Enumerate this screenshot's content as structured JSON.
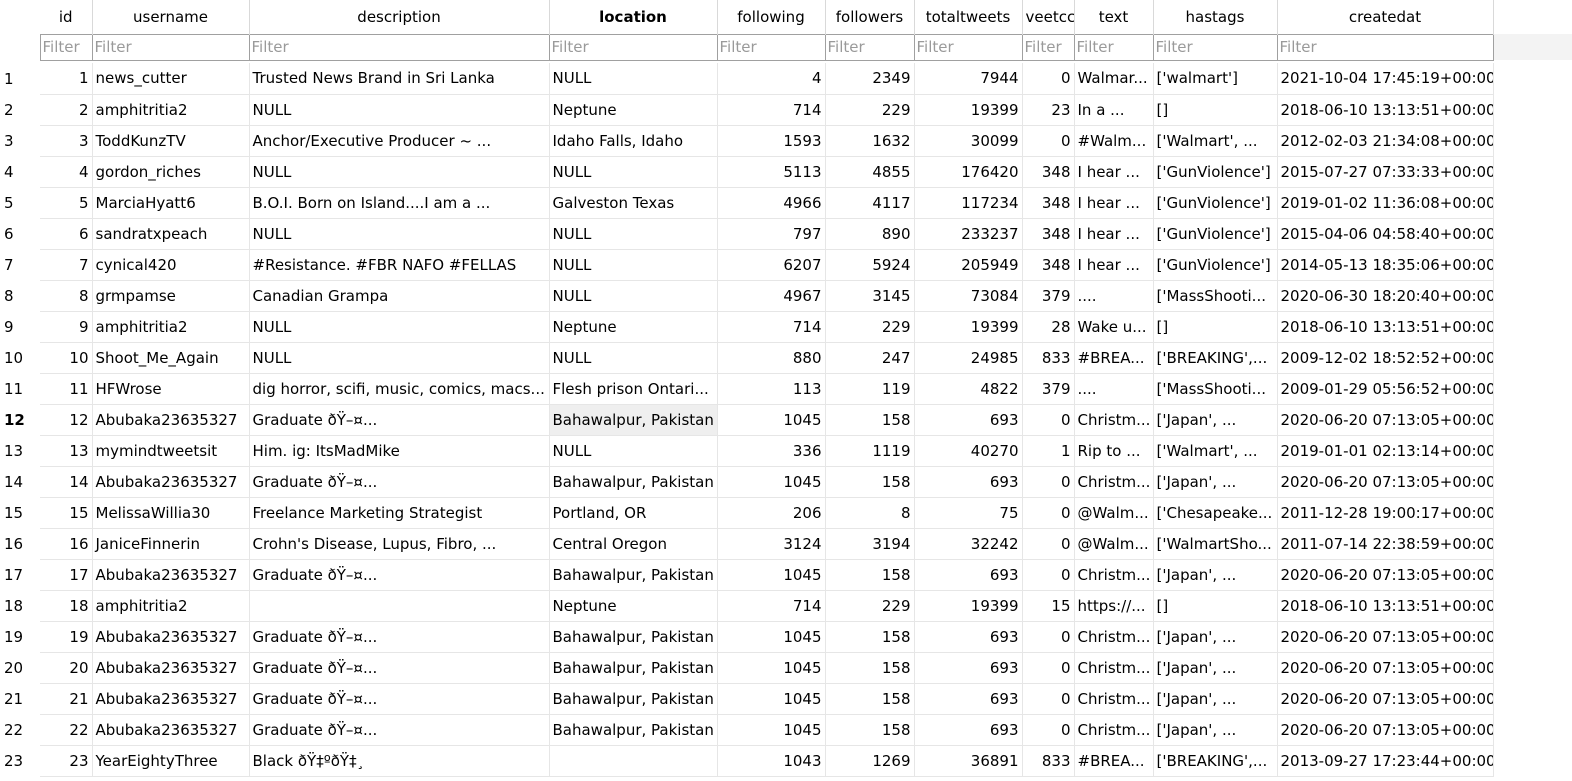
{
  "columns": [
    {
      "key": "rownum",
      "label": ""
    },
    {
      "key": "id",
      "label": "id"
    },
    {
      "key": "username",
      "label": "username"
    },
    {
      "key": "description",
      "label": "description"
    },
    {
      "key": "location",
      "label": "location"
    },
    {
      "key": "following",
      "label": "following"
    },
    {
      "key": "followers",
      "label": "followers"
    },
    {
      "key": "totaltweets",
      "label": "totaltweets"
    },
    {
      "key": "retweetcount",
      "label": "veetcc"
    },
    {
      "key": "text",
      "label": "text"
    },
    {
      "key": "hastags",
      "label": "hastags"
    },
    {
      "key": "createdat",
      "label": "createdat"
    }
  ],
  "sorted_column": "location",
  "filter_placeholder": "Filter",
  "current_row_number": "12",
  "selected_cell": {
    "row": "12",
    "column": "location"
  },
  "rows": [
    [
      "1",
      "1",
      "news_cutter",
      "Trusted News Brand in Sri Lanka",
      "NULL",
      "4",
      "2349",
      "7944",
      "0",
      "Walmar...",
      "['walmart']",
      "2021-10-04 17:45:19+00:00"
    ],
    [
      "2",
      "2",
      "amphitritia2",
      "NULL",
      "Neptune",
      "714",
      "229",
      "19399",
      "23",
      "In a ...",
      "[]",
      "2018-06-10 13:13:51+00:00"
    ],
    [
      "3",
      "3",
      "ToddKunzTV",
      "Anchor/Executive Producer ~ ...",
      "Idaho Falls, Idaho",
      "1593",
      "1632",
      "30099",
      "0",
      "#Walm...",
      "['Walmart', ...",
      "2012-02-03 21:34:08+00:00"
    ],
    [
      "4",
      "4",
      "gordon_riches",
      "NULL",
      "NULL",
      "5113",
      "4855",
      "176420",
      "348",
      "I hear ...",
      "['GunViolence']",
      "2015-07-27 07:33:33+00:00"
    ],
    [
      "5",
      "5",
      "MarciaHyatt6",
      "B.O.I. Born on Island....I am a ...",
      "Galveston Texas",
      "4966",
      "4117",
      "117234",
      "348",
      "I hear ...",
      "['GunViolence']",
      "2019-01-02 11:36:08+00:00"
    ],
    [
      "6",
      "6",
      "sandratxpeach",
      "NULL",
      "NULL",
      "797",
      "890",
      "233237",
      "348",
      "I hear ...",
      "['GunViolence']",
      "2015-04-06 04:58:40+00:00"
    ],
    [
      "7",
      "7",
      "cynical420",
      "#Resistance. #FBR NAFO  #FELLAS",
      "NULL",
      "6207",
      "5924",
      "205949",
      "348",
      "I hear ...",
      "['GunViolence']",
      "2014-05-13 18:35:06+00:00"
    ],
    [
      "8",
      "8",
      "grmpamse",
      "Canadian Grampa",
      "NULL",
      "4967",
      "3145",
      "73084",
      "379",
      "....",
      "['MassShooti...",
      "2020-06-30 18:20:40+00:00"
    ],
    [
      "9",
      "9",
      "amphitritia2",
      "NULL",
      "Neptune",
      "714",
      "229",
      "19399",
      "28",
      "Wake u...",
      "[]",
      "2018-06-10 13:13:51+00:00"
    ],
    [
      "10",
      "10",
      "Shoot_Me_Again",
      "NULL",
      "NULL",
      "880",
      "247",
      "24985",
      "833",
      "#BREA...",
      "['BREAKING',...",
      "2009-12-02 18:52:52+00:00"
    ],
    [
      "11",
      "11",
      "HFWrose",
      "dig horror, scifi, music, comics, macs...",
      "Flesh prison Ontari...",
      "113",
      "119",
      "4822",
      "379",
      "....",
      "['MassShooti...",
      "2009-01-29 05:56:52+00:00"
    ],
    [
      "12",
      "12",
      "Abubaka23635327",
      "Graduate ðŸ–¤...",
      "Bahawalpur, Pakistan",
      "1045",
      "158",
      "693",
      "0",
      "Christm...",
      "['Japan', ...",
      "2020-06-20 07:13:05+00:00"
    ],
    [
      "13",
      "13",
      "mymindtweetsit",
      "Him. ig: ItsMadMike",
      "NULL",
      "336",
      "1119",
      "40270",
      "1",
      "Rip to ...",
      "['Walmart', ...",
      "2019-01-01 02:13:14+00:00"
    ],
    [
      "14",
      "14",
      "Abubaka23635327",
      "Graduate ðŸ–¤...",
      "Bahawalpur, Pakistan",
      "1045",
      "158",
      "693",
      "0",
      "Christm...",
      "['Japan', ...",
      "2020-06-20 07:13:05+00:00"
    ],
    [
      "15",
      "15",
      "MelissaWillia30",
      "Freelance Marketing Strategist",
      "Portland, OR",
      "206",
      "8",
      "75",
      "0",
      "@Walm...",
      "['Chesapeake...",
      "2011-12-28 19:00:17+00:00"
    ],
    [
      "16",
      "16",
      "JaniceFinnerin",
      "Crohn's Disease, Lupus, Fibro, ...",
      "Central Oregon",
      "3124",
      "3194",
      "32242",
      "0",
      "@Walm...",
      "['WalmartSho...",
      "2011-07-14 22:38:59+00:00"
    ],
    [
      "17",
      "17",
      "Abubaka23635327",
      "Graduate ðŸ–¤...",
      "Bahawalpur, Pakistan",
      "1045",
      "158",
      "693",
      "0",
      "Christm...",
      "['Japan', ...",
      "2020-06-20 07:13:05+00:00"
    ],
    [
      "18",
      "18",
      "amphitritia2",
      "",
      "Neptune",
      "714",
      "229",
      "19399",
      "15",
      "https://...",
      "[]",
      "2018-06-10 13:13:51+00:00"
    ],
    [
      "19",
      "19",
      "Abubaka23635327",
      "Graduate ðŸ–¤...",
      "Bahawalpur, Pakistan",
      "1045",
      "158",
      "693",
      "0",
      "Christm...",
      "['Japan', ...",
      "2020-06-20 07:13:05+00:00"
    ],
    [
      "20",
      "20",
      "Abubaka23635327",
      "Graduate ðŸ–¤...",
      "Bahawalpur, Pakistan",
      "1045",
      "158",
      "693",
      "0",
      "Christm...",
      "['Japan', ...",
      "2020-06-20 07:13:05+00:00"
    ],
    [
      "21",
      "21",
      "Abubaka23635327",
      "Graduate ðŸ–¤...",
      "Bahawalpur, Pakistan",
      "1045",
      "158",
      "693",
      "0",
      "Christm...",
      "['Japan', ...",
      "2020-06-20 07:13:05+00:00"
    ],
    [
      "22",
      "22",
      "Abubaka23635327",
      "Graduate ðŸ–¤...",
      "Bahawalpur, Pakistan",
      "1045",
      "158",
      "693",
      "0",
      "Christm...",
      "['Japan', ...",
      "2020-06-20 07:13:05+00:00"
    ],
    [
      "23",
      "23",
      "YearEightyThree",
      "Black ðŸ‡ºðŸ‡¸",
      "",
      "1043",
      "1269",
      "36891",
      "833",
      "#BREA...",
      "['BREAKING',...",
      "2013-09-27 17:23:44+00:00"
    ]
  ]
}
